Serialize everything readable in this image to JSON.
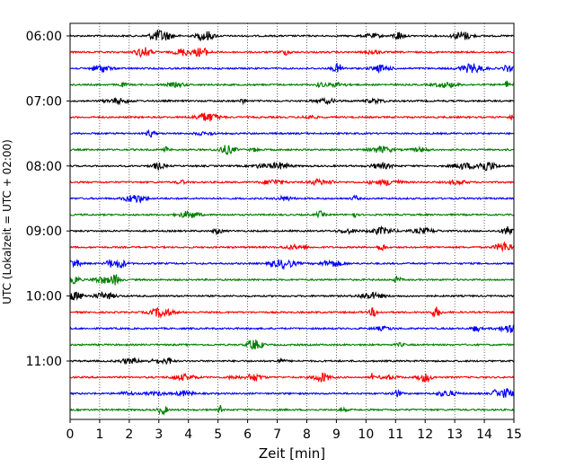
{
  "chart_data": {
    "type": "line",
    "subtype": "helicorder",
    "title": "",
    "xlabel": "Zeit  [min]",
    "ylabel": "UTC (Lokalzeit = UTC + 02:00)",
    "xlim": [
      0,
      15
    ],
    "x_ticks": [
      "0",
      "1",
      "2",
      "3",
      "4",
      "5",
      "6",
      "7",
      "8",
      "9",
      "10",
      "11",
      "12",
      "13",
      "14",
      "15"
    ],
    "y_ticks": [
      "06:00",
      "07:00",
      "08:00",
      "09:00",
      "10:00",
      "11:00"
    ],
    "trace_interval_min": 15,
    "trace_count": 24,
    "first_trace_start": "06:00",
    "trace_color_cycle": [
      "#000000",
      "#ff0000",
      "#0000ff",
      "#008000"
    ],
    "grid": {
      "x": true,
      "y": false,
      "style": "dotted"
    },
    "legend": "none"
  }
}
